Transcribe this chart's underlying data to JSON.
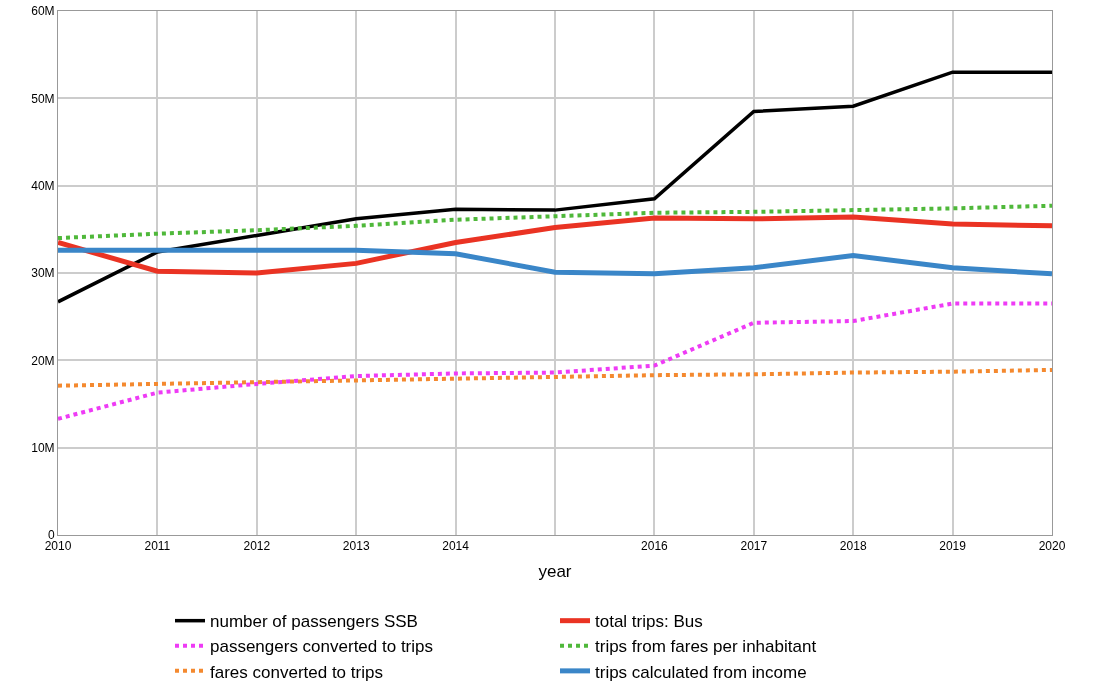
{
  "chart_data": {
    "type": "line",
    "xlabel": "year",
    "categories": [
      "2010",
      "2011",
      "2012",
      "2013",
      "2014",
      null,
      "2016",
      "2017",
      "2018",
      "2019",
      "2020"
    ],
    "ylim": [
      0,
      60000000
    ],
    "yticks": [
      0,
      {
        "value": 10000000,
        "label": "10M"
      },
      {
        "value": 20000000,
        "label": "20M"
      },
      {
        "value": 30000000,
        "label": "30M"
      },
      {
        "value": 40000000,
        "label": "40M"
      },
      {
        "value": 50000000,
        "label": "50M"
      },
      {
        "value": 60000000,
        "label": "60M"
      }
    ],
    "grid": true,
    "legend": "bottom",
    "series": [
      {
        "name": "number of passengers SSB",
        "color": "#000000",
        "line_style": "solid",
        "values": [
          26700000,
          32400000,
          34300000,
          36200000,
          37300000,
          37200000,
          38500000,
          48500000,
          49100000,
          53000000,
          53000000
        ]
      },
      {
        "name": "total trips: Bus",
        "color": "#ea3323",
        "line_style": "solid",
        "values": [
          33500000,
          30200000,
          30000000,
          31100000,
          33500000,
          35200000,
          36300000,
          36200000,
          36400000,
          35600000,
          35400000
        ]
      },
      {
        "name": "passengers converted to trips",
        "color": "#ee3bf5",
        "line_style": "dotted",
        "values": [
          13300000,
          16300000,
          17300000,
          18200000,
          18500000,
          18600000,
          19400000,
          24300000,
          24500000,
          26500000,
          26500000
        ]
      },
      {
        "name": "trips from fares per inhabitant",
        "color": "#4fb83a",
        "line_style": "dotted",
        "values": [
          34000000,
          34500000,
          34900000,
          35400000,
          36100000,
          36500000,
          36900000,
          37000000,
          37200000,
          37400000,
          37700000
        ]
      },
      {
        "name": "fares converted to trips",
        "color": "#f4892f",
        "line_style": "dotted",
        "values": [
          17100000,
          17300000,
          17500000,
          17700000,
          17900000,
          18100000,
          18300000,
          18400000,
          18600000,
          18700000,
          18900000
        ]
      },
      {
        "name": "trips calculated from income",
        "color": "#3a86c8",
        "line_style": "solid",
        "values": [
          32600000,
          32600000,
          32600000,
          32600000,
          32200000,
          30100000,
          29900000,
          30600000,
          32000000,
          30600000,
          29900000
        ]
      }
    ]
  }
}
